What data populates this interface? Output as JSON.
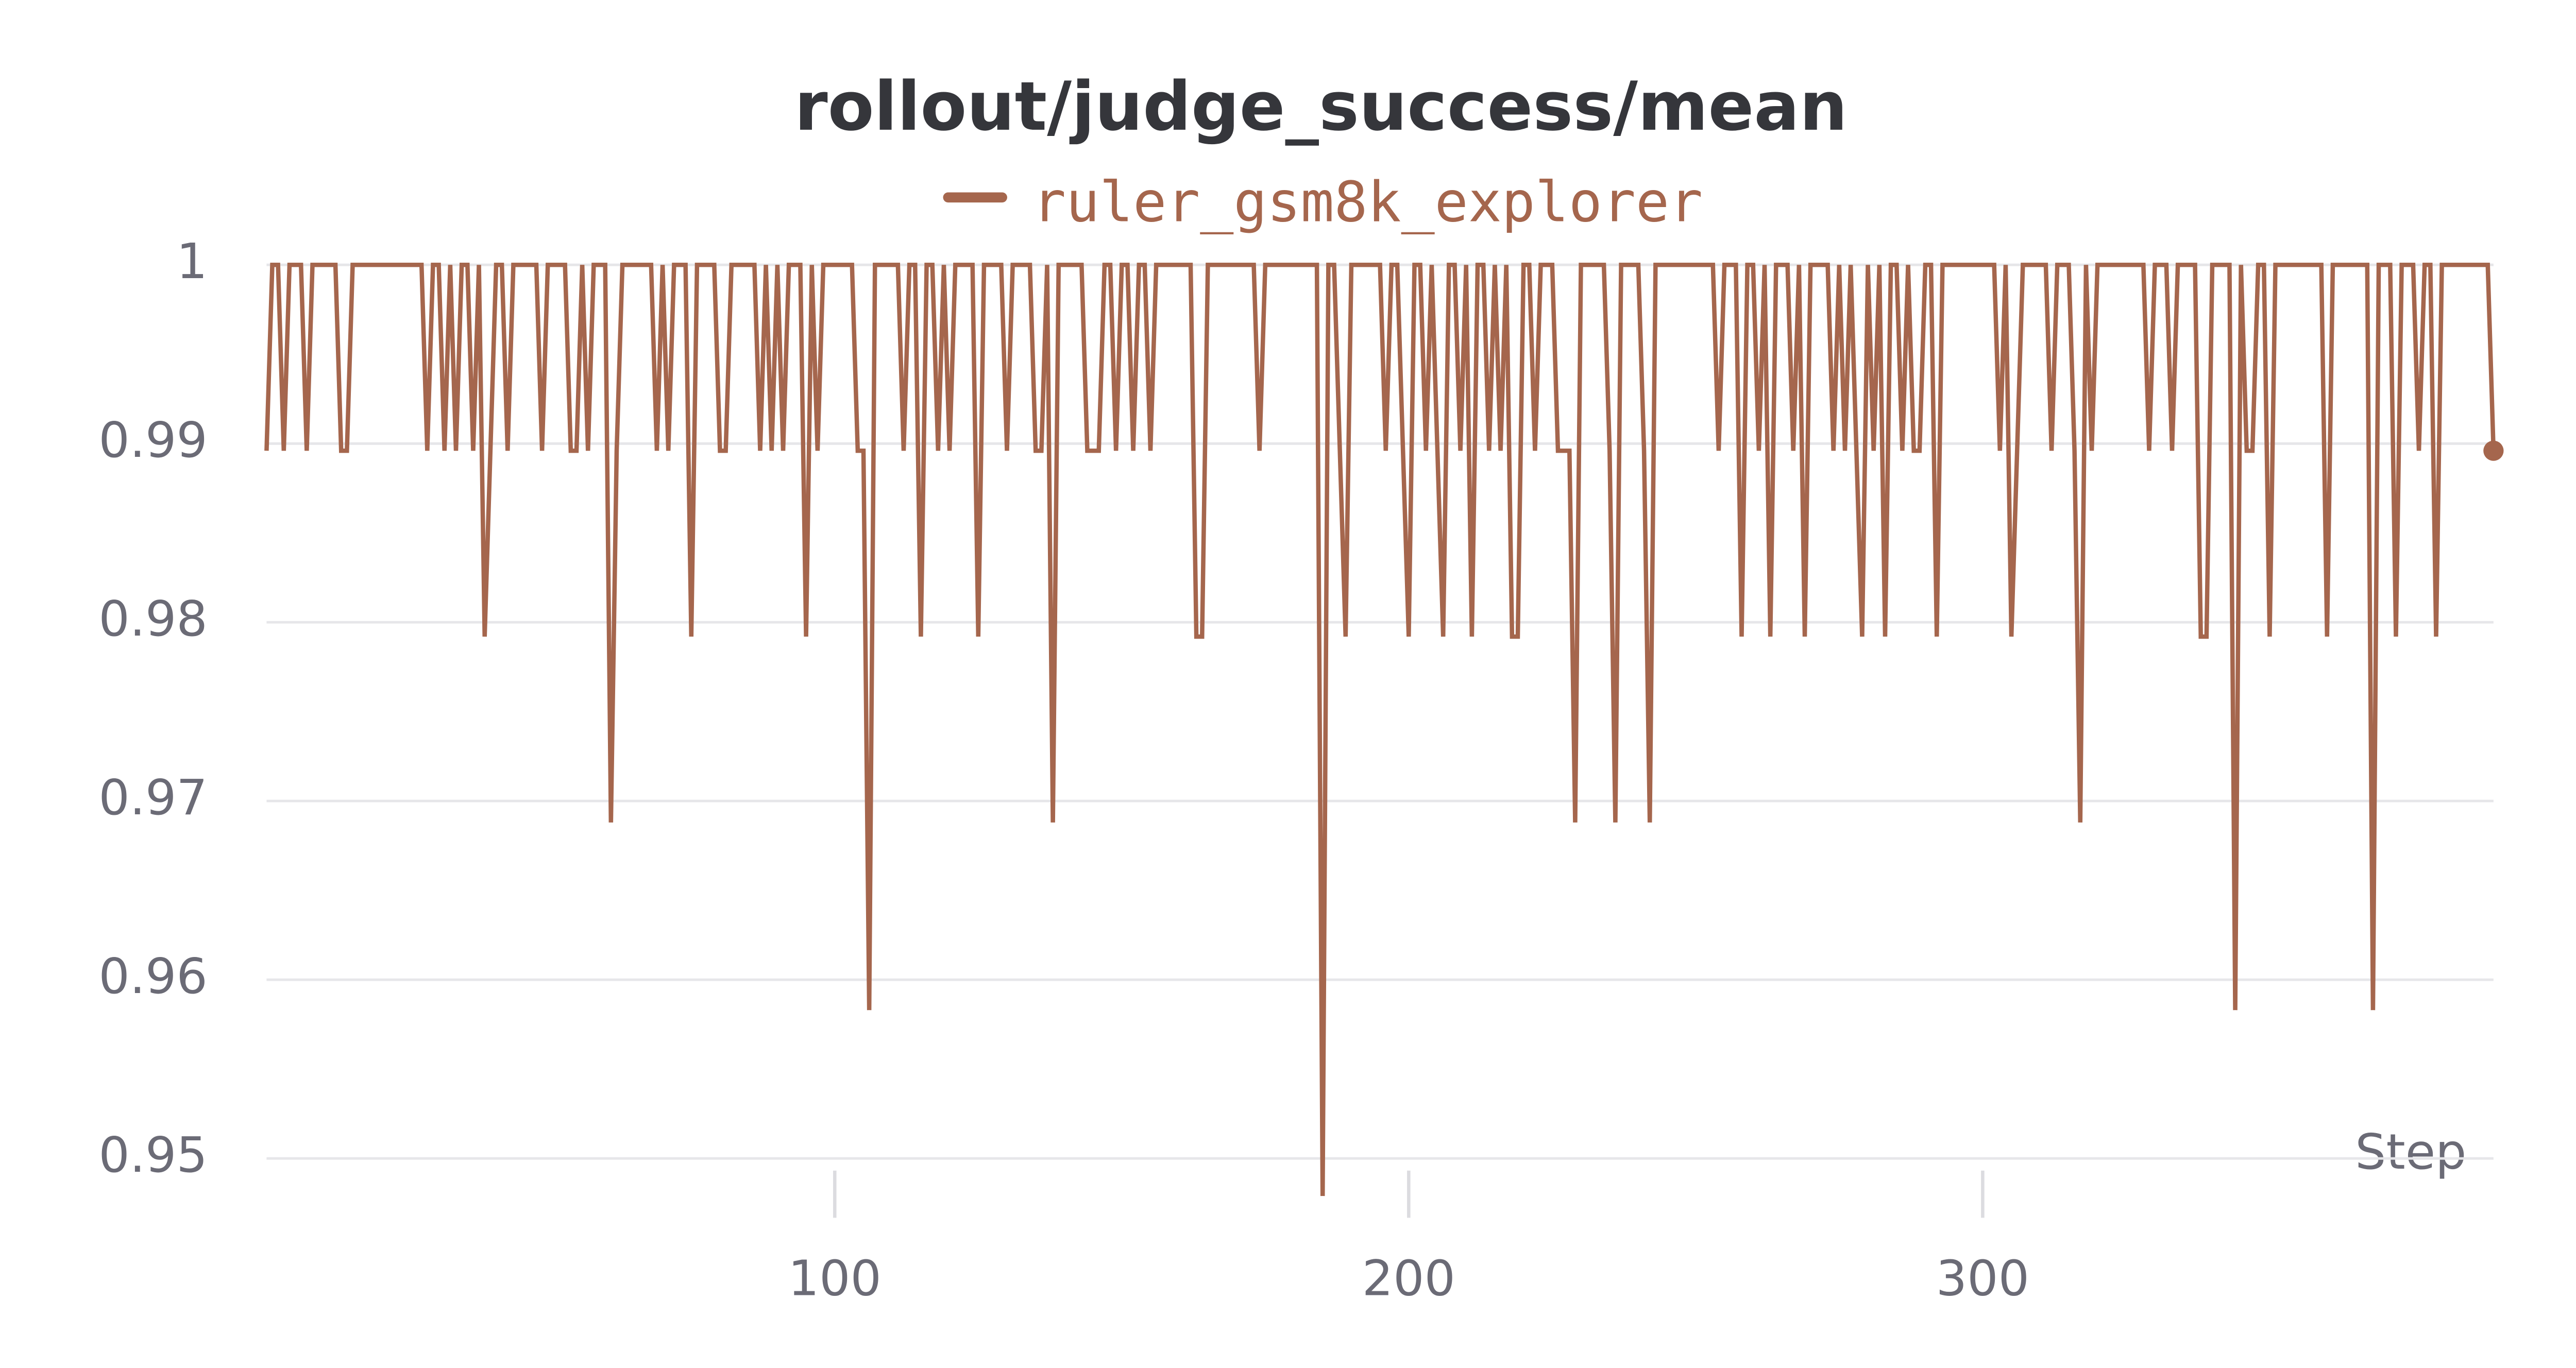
{
  "chart_data": {
    "type": "line",
    "title": "rollout/judge_success/mean",
    "xlabel": "Step",
    "xlim": [
      1,
      389
    ],
    "xticks": [
      100,
      200,
      300
    ],
    "ylim": [
      0.948,
      1
    ],
    "yticks": [
      0.95,
      0.96,
      0.97,
      0.98,
      0.99,
      1
    ],
    "grid": true,
    "legend": "top",
    "x": [
      1,
      2,
      3,
      4,
      5,
      6,
      7,
      8,
      9,
      10,
      11,
      12,
      13,
      14,
      15,
      16,
      17,
      18,
      19,
      20,
      21,
      22,
      23,
      24,
      25,
      26,
      27,
      28,
      29,
      30,
      31,
      32,
      33,
      34,
      35,
      36,
      37,
      38,
      39,
      40,
      41,
      42,
      43,
      44,
      45,
      46,
      47,
      48,
      49,
      50,
      51,
      52,
      53,
      54,
      55,
      56,
      57,
      58,
      59,
      60,
      61,
      62,
      63,
      64,
      65,
      66,
      67,
      68,
      69,
      70,
      71,
      72,
      73,
      74,
      75,
      76,
      77,
      78,
      79,
      80,
      81,
      82,
      83,
      84,
      85,
      86,
      87,
      88,
      89,
      90,
      91,
      92,
      93,
      94,
      95,
      96,
      97,
      98,
      99,
      100,
      101,
      102,
      103,
      104,
      105,
      106,
      107,
      108,
      109,
      110,
      111,
      112,
      113,
      114,
      115,
      116,
      117,
      118,
      119,
      120,
      121,
      122,
      123,
      124,
      125,
      126,
      127,
      128,
      129,
      130,
      131,
      132,
      133,
      134,
      135,
      136,
      137,
      138,
      139,
      140,
      141,
      142,
      143,
      144,
      145,
      146,
      147,
      148,
      149,
      150,
      151,
      152,
      153,
      154,
      155,
      156,
      157,
      158,
      159,
      160,
      161,
      162,
      163,
      164,
      165,
      166,
      167,
      168,
      169,
      170,
      171,
      172,
      173,
      174,
      175,
      176,
      177,
      178,
      179,
      180,
      181,
      182,
      183,
      184,
      185,
      186,
      187,
      188,
      189,
      190,
      191,
      192,
      193,
      194,
      195,
      196,
      197,
      198,
      199,
      200,
      201,
      202,
      203,
      204,
      205,
      206,
      207,
      208,
      209,
      210,
      211,
      212,
      213,
      214,
      215,
      216,
      217,
      218,
      219,
      220,
      221,
      222,
      223,
      224,
      225,
      226,
      227,
      228,
      229,
      230,
      231,
      232,
      233,
      234,
      235,
      236,
      237,
      238,
      239,
      240,
      241,
      242,
      243,
      244,
      245,
      246,
      247,
      248,
      249,
      250,
      251,
      252,
      253,
      254,
      255,
      256,
      257,
      258,
      259,
      260,
      261,
      262,
      263,
      264,
      265,
      266,
      267,
      268,
      269,
      270,
      271,
      272,
      273,
      274,
      275,
      276,
      277,
      278,
      279,
      280,
      281,
      282,
      283,
      284,
      285,
      286,
      287,
      288,
      289,
      290,
      291,
      292,
      293,
      294,
      295,
      296,
      297,
      298,
      299,
      300,
      301,
      302,
      303,
      304,
      305,
      306,
      307,
      308,
      309,
      310,
      311,
      312,
      313,
      314,
      315,
      316,
      317,
      318,
      319,
      320,
      321,
      322,
      323,
      324,
      325,
      326,
      327,
      328,
      329,
      330,
      331,
      332,
      333,
      334,
      335,
      336,
      337,
      338,
      339,
      340,
      341,
      342,
      343,
      344,
      345,
      346,
      347,
      348,
      349,
      350,
      351,
      352,
      353,
      354,
      355,
      356,
      357,
      358,
      359,
      360,
      361,
      362,
      363,
      364,
      365,
      366,
      367,
      368,
      369,
      370,
      371,
      372,
      373,
      374,
      375,
      376,
      377,
      378,
      379,
      380,
      381,
      382,
      383,
      384,
      385,
      386,
      387,
      388,
      389
    ],
    "series": [
      {
        "name": "ruler_gsm8k_explorer",
        "color": "#a5664d",
        "values": [
          0.9896,
          1,
          1,
          0.9896,
          1,
          1,
          1,
          0.9896,
          1,
          1,
          1,
          1,
          1,
          0.9896,
          0.9896,
          1,
          1,
          1,
          1,
          1,
          1,
          1,
          1,
          1,
          1,
          1,
          1,
          1,
          0.9896,
          1,
          1,
          0.9896,
          1,
          0.9896,
          1,
          1,
          0.9896,
          1,
          0.9792,
          0.9896,
          1,
          1,
          0.9896,
          1,
          1,
          1,
          1,
          1,
          0.9896,
          1,
          1,
          1,
          1,
          0.9896,
          0.9896,
          1,
          0.9896,
          1,
          1,
          1,
          0.9688,
          0.9896,
          1,
          1,
          1,
          1,
          1,
          1,
          0.9896,
          1,
          0.9896,
          1,
          1,
          1,
          0.9792,
          1,
          1,
          1,
          1,
          0.9896,
          0.9896,
          1,
          1,
          1,
          1,
          1,
          0.9896,
          1,
          0.9896,
          1,
          0.9896,
          1,
          1,
          1,
          0.9792,
          1,
          0.9896,
          1,
          1,
          1,
          1,
          1,
          1,
          0.9896,
          0.9896,
          0.9583,
          1,
          1,
          1,
          1,
          1,
          0.9896,
          1,
          1,
          0.9792,
          1,
          1,
          0.9896,
          1,
          0.9896,
          1,
          1,
          1,
          1,
          0.9792,
          1,
          1,
          1,
          1,
          0.9896,
          1,
          1,
          1,
          1,
          0.9896,
          0.9896,
          1,
          0.9688,
          1,
          1,
          1,
          1,
          1,
          0.9896,
          0.9896,
          0.9896,
          1,
          1,
          0.9896,
          1,
          1,
          0.9896,
          1,
          1,
          0.9896,
          1,
          1,
          1,
          1,
          1,
          1,
          1,
          0.9792,
          0.9792,
          1,
          1,
          1,
          1,
          1,
          1,
          1,
          1,
          1,
          0.9896,
          1,
          1,
          1,
          1,
          1,
          1,
          1,
          1,
          1,
          1,
          0.9479,
          1,
          1,
          0.9896,
          0.9792,
          1,
          1,
          1,
          1,
          1,
          1,
          0.9896,
          1,
          1,
          0.9896,
          0.9792,
          1,
          1,
          0.9896,
          1,
          0.9896,
          0.9792,
          1,
          1,
          0.9896,
          1,
          0.9792,
          1,
          1,
          0.9896,
          1,
          0.9896,
          1,
          0.9792,
          0.9792,
          1,
          1,
          0.9896,
          1,
          1,
          1,
          0.9896,
          0.9896,
          0.9896,
          0.9688,
          1,
          1,
          1,
          1,
          1,
          0.9896,
          0.9688,
          1,
          1,
          1,
          1,
          0.9896,
          0.9688,
          1,
          1,
          1,
          1,
          1,
          1,
          1,
          1,
          1,
          1,
          1,
          0.9896,
          1,
          1,
          1,
          0.9792,
          1,
          1,
          0.9896,
          1,
          0.9792,
          1,
          1,
          1,
          0.9896,
          1,
          0.9792,
          1,
          1,
          1,
          1,
          0.9896,
          1,
          0.9896,
          1,
          0.9896,
          0.9792,
          1,
          0.9896,
          1,
          0.9792,
          1,
          1,
          0.9896,
          1,
          0.9896,
          0.9896,
          1,
          1,
          0.9792,
          1,
          1,
          1,
          1,
          1,
          1,
          1,
          1,
          1,
          1,
          0.9896,
          1,
          0.9792,
          0.9896,
          1,
          1,
          1,
          1,
          1,
          0.9896,
          1,
          1,
          1,
          0.9896,
          0.9688,
          1,
          0.9896,
          1,
          1,
          1,
          1,
          1,
          1,
          1,
          1,
          1,
          0.9896,
          1,
          1,
          1,
          0.9896,
          1,
          1,
          1,
          1,
          0.9792,
          0.9792,
          1,
          1,
          1,
          1,
          0.9583,
          1,
          0.9896,
          0.9896,
          1,
          1,
          0.9792,
          1,
          1,
          1,
          1,
          1,
          1,
          1,
          1,
          1,
          0.9792,
          1,
          1,
          1,
          1,
          1,
          1,
          1,
          0.9583,
          1,
          1,
          1,
          0.9792,
          1,
          1,
          1,
          0.9896,
          1,
          1,
          0.9792,
          1,
          1,
          1,
          1,
          1,
          1,
          1,
          1,
          1,
          0.9896
        ]
      }
    ]
  }
}
